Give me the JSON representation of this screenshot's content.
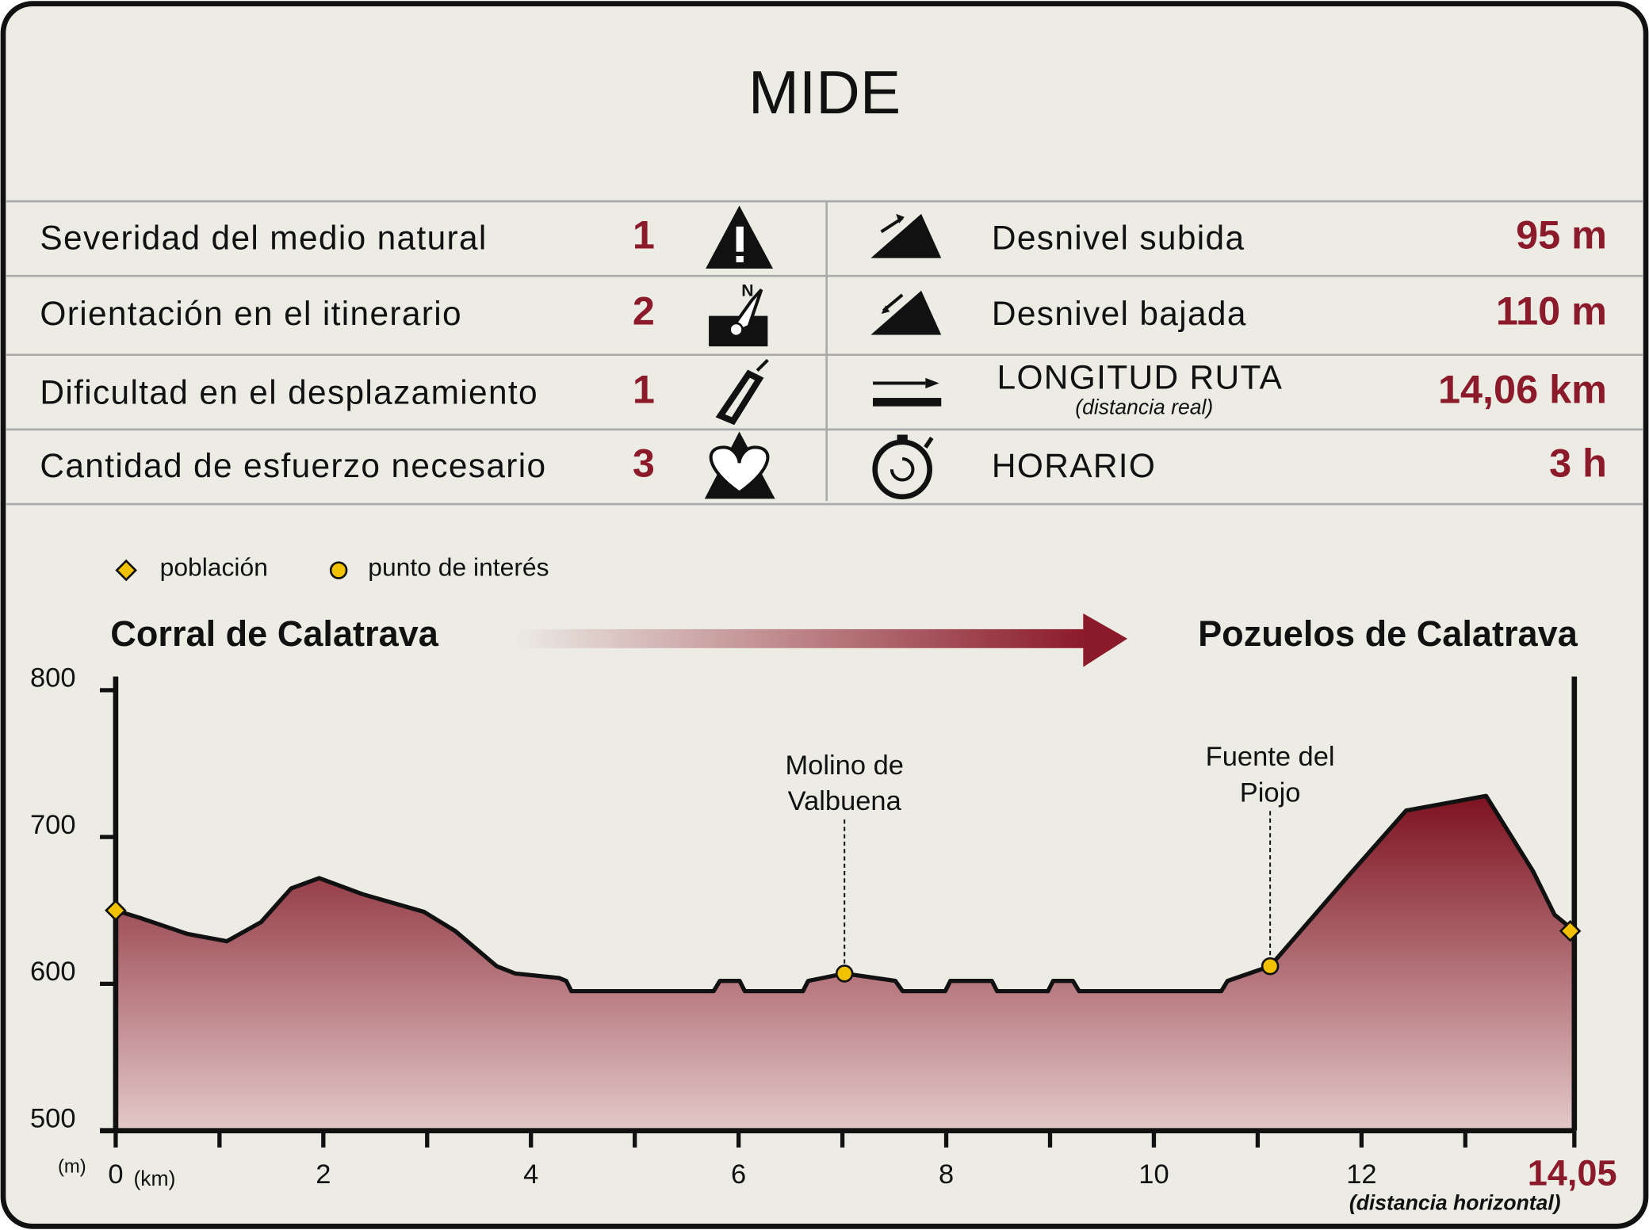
{
  "header": {
    "title": "MIDE"
  },
  "table": {
    "left": [
      {
        "label": "Severidad del medio natural",
        "value": "1"
      },
      {
        "label": "Orientación en el itinerario",
        "value": "2"
      },
      {
        "label": "Dificultad en el desplazamiento",
        "value": "1"
      },
      {
        "label": "Cantidad de esfuerzo necesario",
        "value": "3"
      }
    ],
    "right": [
      {
        "label": "Desnivel subida",
        "value": "95 m"
      },
      {
        "label": "Desnivel bajada",
        "value": "110 m"
      },
      {
        "label": "LONGITUD RUTA",
        "note": "(distancia real)",
        "value": "14,06 km"
      },
      {
        "label": "HORARIO",
        "value": "3 h"
      }
    ]
  },
  "chart_data": {
    "type": "area",
    "start": "Corral de Calatrava",
    "end": "Pozuelos de Calatrava",
    "x": [
      0,
      0.23,
      0.69,
      1.07,
      1.4,
      1.69,
      1.96,
      2.38,
      2.97,
      3.27,
      3.67,
      3.85,
      4.27,
      4.34,
      4.39,
      5.76,
      5.82,
      6.01,
      6.06,
      6.62,
      6.67,
      7.02,
      7.51,
      7.58,
      7.99,
      8.04,
      8.44,
      8.49,
      8.98,
      9.03,
      9.22,
      9.28,
      10.65,
      10.71,
      11.12,
      11.88,
      12.43,
      13.2,
      13.65,
      13.86,
      14.05
    ],
    "values": [
      650,
      645,
      634,
      629,
      642,
      665,
      672,
      661,
      649,
      636,
      612,
      607,
      604,
      602,
      595,
      595,
      602,
      602,
      595,
      595,
      602,
      607,
      602,
      595,
      595,
      602,
      602,
      595,
      595,
      602,
      602,
      595,
      595,
      602,
      612,
      674,
      718,
      728,
      677,
      647,
      636
    ],
    "color_top": "#7d1220",
    "color_bottom": "#e3c9c9",
    "xlim": [
      0,
      14.05
    ],
    "ylim": [
      500,
      800
    ],
    "xticks": [
      0,
      2,
      4,
      6,
      8,
      10,
      12,
      {
        "value": 14.05,
        "label": "14,05"
      }
    ],
    "xminor": [
      1,
      3,
      5,
      7,
      9,
      11,
      13
    ],
    "yticks": [
      500,
      600,
      700,
      800
    ],
    "x_unit": "(km)",
    "y_unit": "(m)",
    "x_note": "(distancia horizontal)",
    "towns": {
      "name": "población",
      "color": "#f2c200",
      "x": [
        0,
        14.01
      ],
      "values": [
        650,
        636
      ]
    },
    "poi": {
      "name": "punto de interés",
      "color": "#f2c200",
      "x": [
        7.02,
        11.12
      ],
      "values": [
        607,
        612
      ],
      "labels": [
        [
          "Molino de",
          "Valbuena"
        ],
        [
          "Fuente del",
          "Piojo"
        ]
      ]
    }
  }
}
